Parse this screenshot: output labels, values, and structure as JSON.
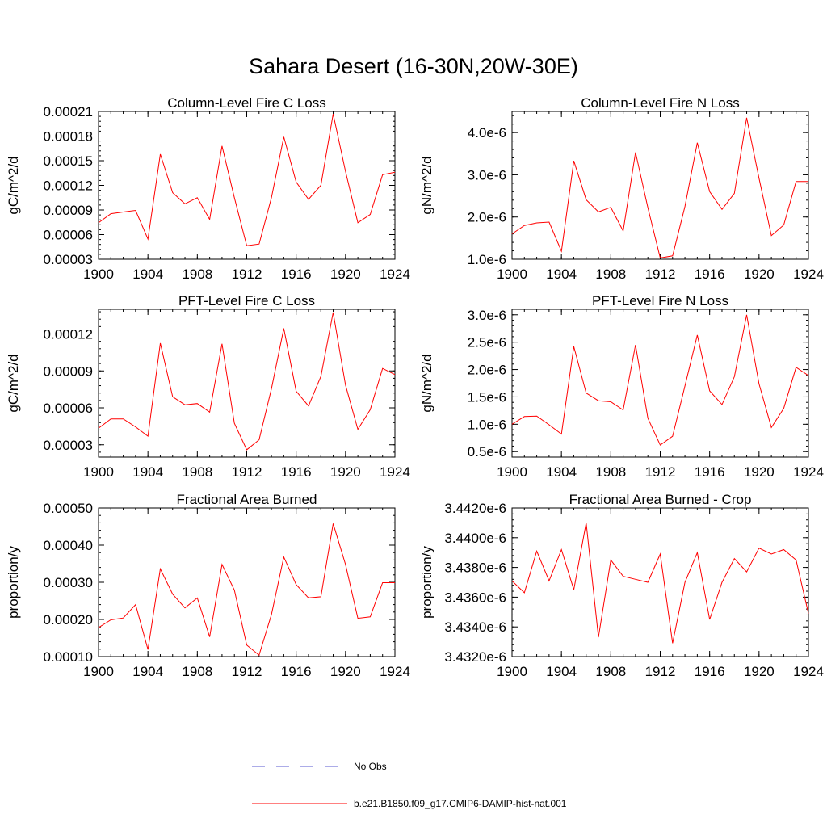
{
  "title": "Sahara Desert (16-30N,20W-30E)",
  "colors": {
    "model_line": "#ff0000",
    "obs_line": "#5a5ad0",
    "axis": "#000000"
  },
  "legend": {
    "obs_label": "No Obs",
    "model_label": "b.e21.B1850.f09_g17.CMIP6-DAMIP-hist-nat.001"
  },
  "chart_data": [
    {
      "type": "line",
      "title": "Column-Level Fire C Loss",
      "ylabel": "gC/m^2/d",
      "xlabel": "",
      "xlim": [
        1900,
        1924
      ],
      "ylim": [
        3e-05,
        0.00021
      ],
      "x_ticks": [
        1900,
        1904,
        1908,
        1912,
        1916,
        1920,
        1924
      ],
      "x_tick_labels": [
        "1900",
        "1904",
        "1908",
        "1912",
        "1916",
        "1920",
        "1924"
      ],
      "y_ticks": [
        3e-05,
        6e-05,
        9e-05,
        0.00012,
        0.00015,
        0.00018,
        0.00021
      ],
      "y_tick_labels": [
        "0.00003",
        "0.00006",
        "0.00009",
        "0.00012",
        "0.00015",
        "0.00018",
        "0.00021"
      ],
      "grid": false,
      "series": [
        {
          "x": [
            1900,
            1901,
            1902,
            1903,
            1904,
            1905,
            1906,
            1907,
            1908,
            1909,
            1910,
            1911,
            1912,
            1913,
            1914,
            1915,
            1916,
            1917,
            1918,
            1919,
            1920,
            1921,
            1922,
            1923,
            1924
          ],
          "values": [
            7.45e-05,
            8.55e-05,
            8.75e-05,
            8.95e-05,
            5.45e-05,
            0.000158,
            0.000111,
            9.75e-05,
            0.000105,
            7.85e-05,
            0.000168,
            0.000105,
            4.65e-05,
            4.85e-05,
            0.000105,
            0.000179,
            0.000124,
            0.000103,
            0.00012,
            0.000207,
            0.000137,
            7.45e-05,
            8.45e-05,
            0.000133,
            0.000136
          ]
        }
      ]
    },
    {
      "type": "line",
      "title": "Column-Level Fire N Loss",
      "ylabel": "gN/m^2/d",
      "xlabel": "",
      "xlim": [
        1900,
        1924
      ],
      "ylim": [
        1e-06,
        4.5e-06
      ],
      "x_ticks": [
        1900,
        1904,
        1908,
        1912,
        1916,
        1920,
        1924
      ],
      "x_tick_labels": [
        "1900",
        "1904",
        "1908",
        "1912",
        "1916",
        "1920",
        "1924"
      ],
      "y_ticks": [
        1e-06,
        2e-06,
        3e-06,
        4e-06
      ],
      "y_tick_labels": [
        "1.0e-6",
        "2.0e-6",
        "3.0e-6",
        "4.0e-6"
      ],
      "grid": false,
      "series": [
        {
          "x": [
            1900,
            1901,
            1902,
            1903,
            1904,
            1905,
            1906,
            1907,
            1908,
            1909,
            1910,
            1911,
            1912,
            1913,
            1914,
            1915,
            1916,
            1917,
            1918,
            1919,
            1920,
            1921,
            1922,
            1923,
            1924
          ],
          "values": [
            1.6e-06,
            1.8e-06,
            1.86e-06,
            1.88e-06,
            1.19e-06,
            3.33e-06,
            2.41e-06,
            2.12e-06,
            2.23e-06,
            1.67e-06,
            3.53e-06,
            2.22e-06,
            1.03e-06,
            1.08e-06,
            2.25e-06,
            3.76e-06,
            2.6e-06,
            2.18e-06,
            2.56e-06,
            4.35e-06,
            2.92e-06,
            1.56e-06,
            1.81e-06,
            2.84e-06,
            2.84e-06
          ]
        }
      ]
    },
    {
      "type": "line",
      "title": "PFT-Level Fire C Loss",
      "ylabel": "gC/m^2/d",
      "xlabel": "",
      "xlim": [
        1900,
        1924
      ],
      "ylim": [
        2e-05,
        0.00014
      ],
      "x_ticks": [
        1900,
        1904,
        1908,
        1912,
        1916,
        1920,
        1924
      ],
      "x_tick_labels": [
        "1900",
        "1904",
        "1908",
        "1912",
        "1916",
        "1920",
        "1924"
      ],
      "y_ticks": [
        3e-05,
        6e-05,
        9e-05,
        0.00012
      ],
      "y_tick_labels": [
        "0.00003",
        "0.00006",
        "0.00009",
        "0.00012"
      ],
      "grid": false,
      "series": [
        {
          "x": [
            1900,
            1901,
            1902,
            1903,
            1904,
            1905,
            1906,
            1907,
            1908,
            1909,
            1910,
            1911,
            1912,
            1913,
            1914,
            1915,
            1916,
            1917,
            1918,
            1919,
            1920,
            1921,
            1922,
            1923,
            1924
          ],
          "values": [
            4.35e-05,
            5.1e-05,
            5.1e-05,
            4.45e-05,
            3.7e-05,
            0.0001125,
            6.9e-05,
            6.25e-05,
            6.35e-05,
            5.65e-05,
            0.000112,
            4.75e-05,
            2.6e-05,
            3.4e-05,
            7.55e-05,
            0.0001245,
            7.35e-05,
            6.15e-05,
            8.55e-05,
            0.0001375,
            7.85e-05,
            4.25e-05,
            5.85e-05,
            9.2e-05,
            8.7e-05
          ]
        }
      ]
    },
    {
      "type": "line",
      "title": "PFT-Level Fire N Loss",
      "ylabel": "gN/m^2/d",
      "xlabel": "",
      "xlim": [
        1900,
        1924
      ],
      "ylim": [
        4e-07,
        3.1e-06
      ],
      "x_ticks": [
        1900,
        1904,
        1908,
        1912,
        1916,
        1920,
        1924
      ],
      "x_tick_labels": [
        "1900",
        "1904",
        "1908",
        "1912",
        "1916",
        "1920",
        "1924"
      ],
      "y_ticks": [
        5e-07,
        1e-06,
        1.5e-06,
        2e-06,
        2.5e-06,
        3e-06
      ],
      "y_tick_labels": [
        "0.5e-6",
        "1.0e-6",
        "1.5e-6",
        "2.0e-6",
        "2.5e-6",
        "3.0e-6"
      ],
      "grid": false,
      "series": [
        {
          "x": [
            1900,
            1901,
            1902,
            1903,
            1904,
            1905,
            1906,
            1907,
            1908,
            1909,
            1910,
            1911,
            1912,
            1913,
            1914,
            1915,
            1916,
            1917,
            1918,
            1919,
            1920,
            1921,
            1922,
            1923,
            1924
          ],
          "values": [
            1e-06,
            1.14e-06,
            1.15e-06,
            9.9e-07,
            8.2e-07,
            2.42e-06,
            1.57e-06,
            1.43e-06,
            1.41e-06,
            1.26e-06,
            2.45e-06,
            1.11e-06,
            6.2e-07,
            7.8e-07,
            1.7e-06,
            2.63e-06,
            1.61e-06,
            1.36e-06,
            1.87e-06,
            3e-06,
            1.74e-06,
            9.4e-07,
            1.29e-06,
            2.04e-06,
            1.89e-06
          ]
        }
      ]
    },
    {
      "type": "line",
      "title": "Fractional Area Burned",
      "ylabel": "proportion/y",
      "xlabel": "",
      "xlim": [
        1900,
        1924
      ],
      "ylim": [
        0.0001,
        0.0005
      ],
      "x_ticks": [
        1900,
        1904,
        1908,
        1912,
        1916,
        1920,
        1924
      ],
      "x_tick_labels": [
        "1900",
        "1904",
        "1908",
        "1912",
        "1916",
        "1920",
        "1924"
      ],
      "y_ticks": [
        0.0001,
        0.0002,
        0.0003,
        0.0004,
        0.0005
      ],
      "y_tick_labels": [
        "0.00010",
        "0.00020",
        "0.00030",
        "0.00040",
        "0.00050"
      ],
      "grid": false,
      "series": [
        {
          "x": [
            1900,
            1901,
            1902,
            1903,
            1904,
            1905,
            1906,
            1907,
            1908,
            1909,
            1910,
            1911,
            1912,
            1913,
            1914,
            1915,
            1916,
            1917,
            1918,
            1919,
            1920,
            1921,
            1922,
            1923,
            1924
          ],
          "values": [
            0.000178,
            0.000199,
            0.000204,
            0.00024,
            0.000119,
            0.000336,
            0.000268,
            0.000231,
            0.000258,
            0.000153,
            0.000348,
            0.000279,
            0.000131,
            0.000104,
            0.000213,
            0.000368,
            0.000294,
            0.000258,
            0.000261,
            0.000458,
            0.000348,
            0.000203,
            0.000207,
            0.000299,
            0.000299
          ]
        }
      ]
    },
    {
      "type": "line",
      "title": "Fractional Area Burned - Crop",
      "ylabel": "proportion/y",
      "xlabel": "",
      "xlim": [
        1900,
        1924
      ],
      "ylim": [
        3.432e-06,
        3.442e-06
      ],
      "x_ticks": [
        1900,
        1904,
        1908,
        1912,
        1916,
        1920,
        1924
      ],
      "x_tick_labels": [
        "1900",
        "1904",
        "1908",
        "1912",
        "1916",
        "1920",
        "1924"
      ],
      "y_ticks": [
        3.432e-06,
        3.434e-06,
        3.436e-06,
        3.438e-06,
        3.44e-06,
        3.442e-06
      ],
      "y_tick_labels": [
        "3.4320e-6",
        "3.4340e-6",
        "3.4360e-6",
        "3.4380e-6",
        "3.4400e-6",
        "3.4420e-6"
      ],
      "grid": false,
      "series": [
        {
          "x": [
            1900,
            1901,
            1902,
            1903,
            1904,
            1905,
            1906,
            1907,
            1908,
            1909,
            1910,
            1911,
            1912,
            1913,
            1914,
            1915,
            1916,
            1917,
            1918,
            1919,
            1920,
            1921,
            1922,
            1923,
            1924
          ],
          "values": [
            3.4371e-06,
            3.4363e-06,
            3.4391e-06,
            3.4371e-06,
            3.4392e-06,
            3.4365e-06,
            3.441e-06,
            3.4333e-06,
            3.4385e-06,
            3.4374e-06,
            3.4372e-06,
            3.437e-06,
            3.4389e-06,
            3.4329e-06,
            3.437e-06,
            3.439e-06,
            3.4345e-06,
            3.437e-06,
            3.4386e-06,
            3.4377e-06,
            3.4393e-06,
            3.4389e-06,
            3.4392e-06,
            3.4385e-06,
            3.4349e-06
          ]
        }
      ]
    }
  ]
}
